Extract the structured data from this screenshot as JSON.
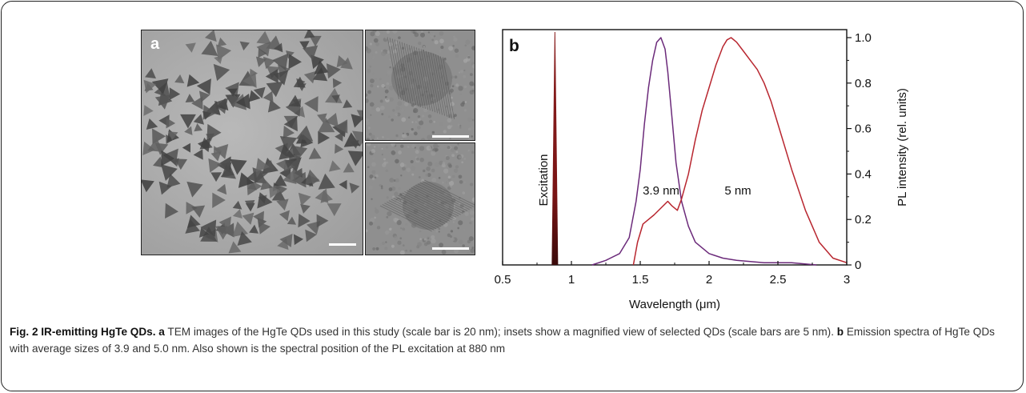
{
  "panel_a": {
    "label": "a"
  },
  "panel_b": {
    "label": "b"
  },
  "chart_data": {
    "type": "line",
    "xlabel": "Wavelength (μm)",
    "ylabel": "PL intensity (rel. units)",
    "xlim": [
      0.5,
      3
    ],
    "ylim": [
      0,
      1.0
    ],
    "x_ticks": [
      "0.5",
      "1",
      "1.5",
      "2",
      "2.5",
      "3"
    ],
    "y_ticks": [
      "0",
      "0.2",
      "0.4",
      "0.6",
      "0.8",
      "1.0"
    ],
    "annotations": [
      "Excitation",
      "3.9 nm",
      "5 nm"
    ],
    "excitation_wavelength": 0.88,
    "series": [
      {
        "name": "3.9 nm",
        "color": "#6b2a7a",
        "x": [
          1.15,
          1.25,
          1.35,
          1.42,
          1.47,
          1.5,
          1.53,
          1.56,
          1.59,
          1.62,
          1.65,
          1.68,
          1.7,
          1.73,
          1.76,
          1.8,
          1.85,
          1.9,
          2.0,
          2.1,
          2.2,
          2.4,
          2.6,
          2.78
        ],
        "y": [
          0.0,
          0.02,
          0.05,
          0.12,
          0.28,
          0.42,
          0.62,
          0.78,
          0.9,
          0.98,
          1.0,
          0.95,
          0.85,
          0.65,
          0.45,
          0.28,
          0.17,
          0.1,
          0.05,
          0.03,
          0.02,
          0.01,
          0.01,
          0.0
        ]
      },
      {
        "name": "5 nm",
        "color": "#b8262f",
        "x": [
          1.45,
          1.48,
          1.52,
          1.56,
          1.6,
          1.65,
          1.7,
          1.73,
          1.77,
          1.8,
          1.85,
          1.9,
          1.95,
          2.0,
          2.05,
          2.1,
          2.13,
          2.16,
          2.2,
          2.25,
          2.3,
          2.35,
          2.4,
          2.45,
          2.5,
          2.6,
          2.7,
          2.8,
          2.9,
          3.0
        ],
        "y": [
          0.0,
          0.1,
          0.18,
          0.2,
          0.22,
          0.25,
          0.28,
          0.26,
          0.24,
          0.29,
          0.4,
          0.55,
          0.68,
          0.78,
          0.88,
          0.96,
          0.99,
          1.0,
          0.98,
          0.94,
          0.9,
          0.86,
          0.8,
          0.72,
          0.62,
          0.42,
          0.24,
          0.1,
          0.03,
          0.01
        ]
      }
    ]
  },
  "caption": {
    "fig_label": "Fig. 2 IR-emitting HgTe QDs.",
    "a_label": "a",
    "a_text": "TEM images of the HgTe QDs used in this study (scale bar is 20 nm); insets show a magnified view of selected QDs (scale bars are 5 nm).",
    "b_label": "b",
    "b_text": "Emission spectra of HgTe QDs with average sizes of 3.9 and 5.0 nm. Also shown is the spectral position of the PL excitation at 880 nm"
  }
}
